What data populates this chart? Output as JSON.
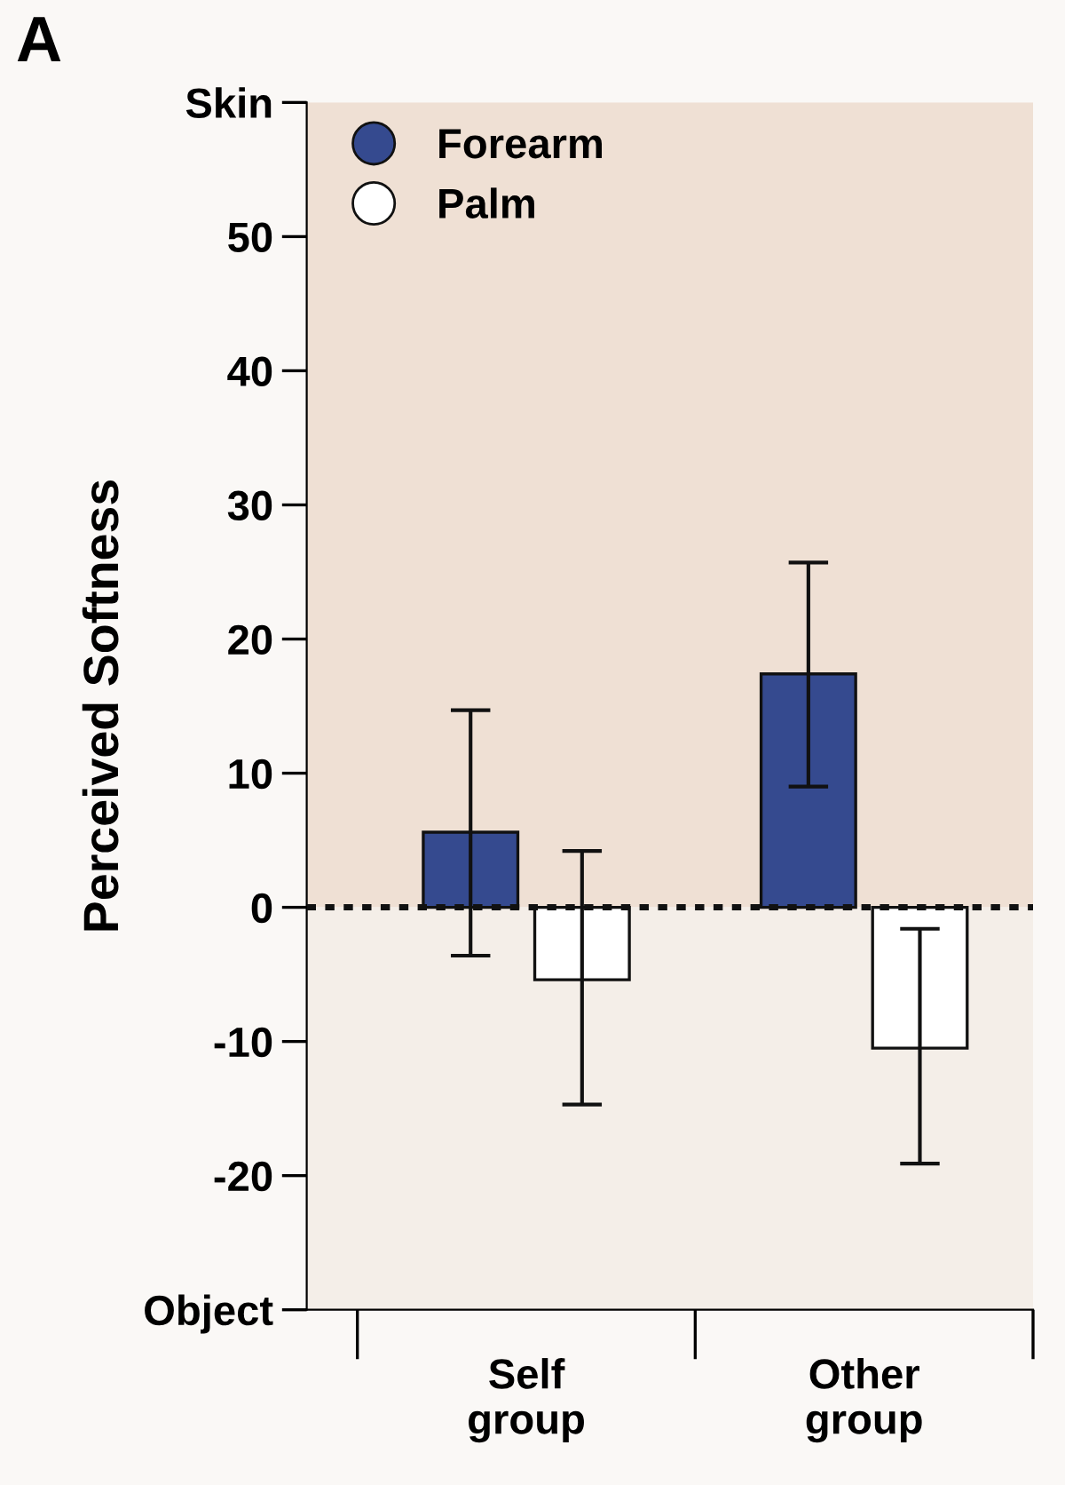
{
  "chart_data": {
    "type": "bar",
    "ylabel": "Perceived Softness",
    "categories": [
      "Self\ngroup",
      "Other\ngroup"
    ],
    "series": [
      {
        "name": "Forearm",
        "color": "#354a8f",
        "values": [
          5.6,
          17.4
        ],
        "errors": [
          [
            -3.6,
            14.7
          ],
          [
            9.0,
            25.7
          ]
        ]
      },
      {
        "name": "Palm",
        "color": "#ffffff",
        "values": [
          -5.4,
          -10.5
        ],
        "errors": [
          [
            -14.7,
            4.2
          ],
          [
            -19.1,
            -1.6
          ]
        ]
      }
    ],
    "ylim": [
      -30,
      60
    ],
    "yticks": [
      {
        "value": -30,
        "label": "Object"
      },
      -20,
      -10,
      0,
      10,
      20,
      30,
      40,
      50,
      {
        "value": 60,
        "label": "Skin"
      }
    ],
    "ref_lines": [
      {
        "axis": "y",
        "value": 0,
        "label": null,
        "line_style": "dotted",
        "color": "#111111"
      }
    ],
    "bands": [
      {
        "axis": "y",
        "from": 0,
        "to": 60,
        "label": null,
        "color": "#efe0d4"
      },
      {
        "axis": "y",
        "from": -30,
        "to": 0,
        "label": null,
        "color": "#f4eee8"
      }
    ],
    "annotations": [
      "A"
    ],
    "legend": "top left",
    "grid": false,
    "marker": "circle"
  }
}
